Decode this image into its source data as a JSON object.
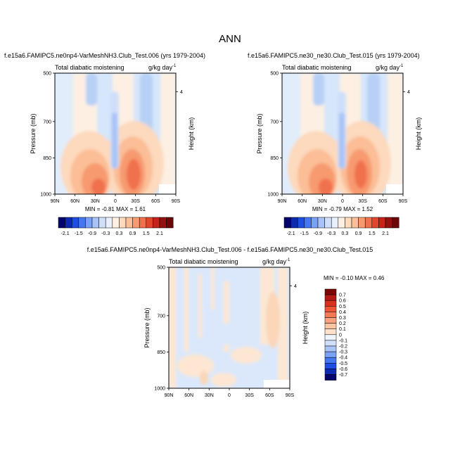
{
  "title": "ANN",
  "chart_data": [
    {
      "type": "heatmap",
      "panel": "model-a",
      "title": "f.e15a6.FAMIPC5.ne0np4-VarMeshNH3.Club_Test.006 (yrs 1979-2004)",
      "field_label": "Total diabatic moistening",
      "units": "g/kg day",
      "units_exp": "-1",
      "ylabel": "Pressure (mb)",
      "ylabel_right": "Height (km)",
      "yticks": [
        "500",
        "700",
        "850",
        "1000"
      ],
      "ytick_values": [
        500,
        700,
        850,
        1000
      ],
      "ylim": [
        500,
        1000
      ],
      "right_tick": {
        "label": "4",
        "value": 620
      },
      "xticks": [
        "90N",
        "60N",
        "30N",
        "0",
        "30S",
        "60S",
        "90S"
      ],
      "xlim": [
        90,
        -90
      ],
      "min_max_text": "MIN =  -0.81  MAX =   1.61",
      "min": -0.81,
      "max": 1.61
    },
    {
      "type": "heatmap",
      "panel": "model-b",
      "title": "f.e15a6.FAMIPC5.ne30_ne30.Club_Test.015 (yrs 1979-2004)",
      "field_label": "Total diabatic moistening",
      "units": "g/kg day",
      "units_exp": "-1",
      "ylabel": "Pressure (mb)",
      "ylabel_right": "Height (km)",
      "yticks": [
        "500",
        "700",
        "850",
        "1000"
      ],
      "ytick_values": [
        500,
        700,
        850,
        1000
      ],
      "ylim": [
        500,
        1000
      ],
      "right_tick": {
        "label": "4",
        "value": 620
      },
      "xticks": [
        "90N",
        "60N",
        "30N",
        "0",
        "30S",
        "60S",
        "90S"
      ],
      "xlim": [
        90,
        -90
      ],
      "min_max_text": "MIN =  -0.79  MAX =   1.52",
      "min": -0.79,
      "max": 1.52
    },
    {
      "type": "heatmap",
      "panel": "difference",
      "title": "f.e15a6.FAMIPC5.ne0np4-VarMeshNH3.Club_Test.006 - f.e15a6.FAMIPC5.ne30_ne30.Club_Test.015",
      "field_label": "Total diabatic moistening",
      "units": "g/kg day",
      "units_exp": "-1",
      "ylabel": "Pressure (mb)",
      "ylabel_right": "Height (km)",
      "yticks": [
        "500",
        "700",
        "850",
        "1000"
      ],
      "ytick_values": [
        500,
        700,
        850,
        1000
      ],
      "ylim": [
        500,
        1000
      ],
      "right_tick": {
        "label": "4",
        "value": 620
      },
      "xticks": [
        "90N",
        "60N",
        "30N",
        "0",
        "30S",
        "60S",
        "90S"
      ],
      "xlim": [
        90,
        -90
      ],
      "min_max_text": "MIN =  -0.10  MAX =   0.46",
      "min": -0.1,
      "max": 0.46
    }
  ],
  "colorbar_top": {
    "labels": [
      "-2.1",
      "-1.5",
      "-0.9",
      "-0.3",
      "0.3",
      "0.9",
      "1.5",
      "2.1"
    ],
    "colors": [
      "#05056e",
      "#0c2bb0",
      "#1f4fe0",
      "#4577f0",
      "#7aa1f5",
      "#a8c3f7",
      "#cfdff9",
      "#e8f0fb",
      "#fdf0e3",
      "#fdd9bd",
      "#fbbe96",
      "#f79a70",
      "#f0714d",
      "#e0472d",
      "#c5241a",
      "#961010",
      "#6b0707"
    ]
  },
  "colorbar_diff": {
    "labels": [
      "0.7",
      "0.6",
      "0.5",
      "0.4",
      "0.3",
      "0.2",
      "0.1",
      "0",
      "-0.1",
      "-0.2",
      "-0.3",
      "-0.4",
      "-0.5",
      "-0.6",
      "-0.7"
    ],
    "colors": [
      "#7a0606",
      "#b01a12",
      "#d8311e",
      "#ef5434",
      "#f47a55",
      "#f9a27d",
      "#fbc5a3",
      "#fde1cb",
      "#eef4fb",
      "#cfdff9",
      "#a8c3f7",
      "#7aa1f5",
      "#4577f0",
      "#1f4fe0",
      "#0c2bb0",
      "#05056e"
    ]
  }
}
